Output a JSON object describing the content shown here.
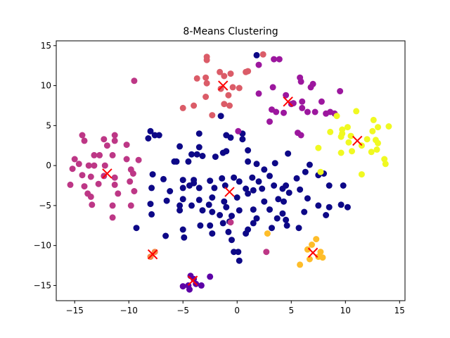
{
  "chart_data": {
    "type": "scatter",
    "title": "8-Means Clustering",
    "xlabel": "",
    "ylabel": "",
    "xlim": [
      -16.7,
      15.5
    ],
    "ylim": [
      -16.9,
      15.6
    ],
    "xticks": [
      -15,
      -10,
      -5,
      0,
      5,
      10,
      15
    ],
    "yticks": [
      -15,
      -10,
      -5,
      0,
      5,
      10,
      15
    ],
    "grid": false,
    "legend": "none",
    "centroid_marker": "x",
    "centroid_color": "#ff0000",
    "clusters": [
      {
        "color": "#0d0887",
        "centroid": [
          -0.7,
          -3.3
        ],
        "points": [
          [
            -8.0,
            4.3
          ],
          [
            -7.6,
            3.8
          ],
          [
            -7.2,
            3.8
          ],
          [
            -8.2,
            3.4
          ],
          [
            -3.5,
            4.0
          ],
          [
            -1.0,
            3.8
          ],
          [
            -0.6,
            3.5
          ],
          [
            0.5,
            3.3
          ],
          [
            0.5,
            4.0
          ],
          [
            -5.3,
            2.4
          ],
          [
            -3.5,
            2.3
          ],
          [
            -4.5,
            0.5
          ],
          [
            -5.8,
            0.5
          ],
          [
            -5.6,
            0.5
          ],
          [
            -4.2,
            1.4
          ],
          [
            -3.7,
            1.4
          ],
          [
            -3.2,
            1.2
          ],
          [
            -2.0,
            1.1
          ],
          [
            -1.3,
            1.6
          ],
          [
            -1.0,
            1.8
          ],
          [
            1.0,
            1.9
          ],
          [
            1.0,
            0.5
          ],
          [
            1.8,
            0.2
          ],
          [
            2.5,
            -0.5
          ],
          [
            3.5,
            0.3
          ],
          [
            4.7,
            1.5
          ],
          [
            3.0,
            -1.3
          ],
          [
            -7.8,
            -1.1
          ],
          [
            -6.8,
            -1.7
          ],
          [
            -5.0,
            -1.8
          ],
          [
            -4.0,
            -1.8
          ],
          [
            -4.0,
            -2.2
          ],
          [
            -2.5,
            -1.9
          ],
          [
            -1.4,
            -1.6
          ],
          [
            -0.3,
            -1.5
          ],
          [
            0.2,
            -2.0
          ],
          [
            1.4,
            -1.5
          ],
          [
            2.0,
            -2.0
          ],
          [
            3.4,
            -2.5
          ],
          [
            4.5,
            -2.5
          ],
          [
            5.5,
            -1.6
          ],
          [
            6.3,
            -0.8
          ],
          [
            6.7,
            0.1
          ],
          [
            7.5,
            -1.2
          ],
          [
            8.0,
            -1.0
          ],
          [
            -7.9,
            -2.8
          ],
          [
            -6.2,
            -3.2
          ],
          [
            -5.0,
            -2.8
          ],
          [
            -4.4,
            -2.5
          ],
          [
            -3.5,
            -2.8
          ],
          [
            -2.1,
            -2.8
          ],
          [
            -1.1,
            -2.5
          ],
          [
            0.8,
            -2.9
          ],
          [
            1.5,
            -3.1
          ],
          [
            2.3,
            -2.9
          ],
          [
            4.2,
            -2.9
          ],
          [
            5.8,
            -3.0
          ],
          [
            8.5,
            -2.5
          ],
          [
            9.8,
            -2.5
          ],
          [
            -6.5,
            -4.4
          ],
          [
            -5.0,
            -4.2
          ],
          [
            -3.5,
            -4.3
          ],
          [
            -2.3,
            -4.0
          ],
          [
            -1.2,
            -4.5
          ],
          [
            0.0,
            -4.0
          ],
          [
            1.0,
            -3.5
          ],
          [
            2.5,
            -4.5
          ],
          [
            3.8,
            -4.2
          ],
          [
            4.3,
            -4.5
          ],
          [
            4.8,
            -3.4
          ],
          [
            6.5,
            -4.1
          ],
          [
            -8.0,
            -4.8
          ],
          [
            -5.3,
            -5.0
          ],
          [
            -4.2,
            -5.0
          ],
          [
            -2.6,
            -4.9
          ],
          [
            -2.3,
            -5.8
          ],
          [
            -1.0,
            -5.2
          ],
          [
            0.2,
            -5.6
          ],
          [
            1.5,
            -5.5
          ],
          [
            3.0,
            -5.5
          ],
          [
            4.2,
            -6.0
          ],
          [
            7.5,
            -5.0
          ],
          [
            8.5,
            -5.2
          ],
          [
            9.6,
            -4.9
          ],
          [
            10.2,
            -5.2
          ],
          [
            -7.9,
            -6.1
          ],
          [
            -5.3,
            -5.6
          ],
          [
            -3.2,
            -5.6
          ],
          [
            -1.6,
            -6.2
          ],
          [
            -0.5,
            -6.3
          ],
          [
            1.8,
            -6.6
          ],
          [
            3.7,
            -6.6
          ],
          [
            4.5,
            -6.8
          ],
          [
            6.2,
            -5.8
          ],
          [
            8.2,
            -6.2
          ],
          [
            -3.4,
            -7.5
          ],
          [
            -2.5,
            -7.5
          ],
          [
            -1.3,
            -7.2
          ],
          [
            -0.7,
            -7.0
          ],
          [
            1.0,
            -8.0
          ],
          [
            1.5,
            -7.2
          ],
          [
            3.2,
            -7.8
          ],
          [
            4.6,
            -7.5
          ],
          [
            5.7,
            -7.8
          ],
          [
            -9.3,
            -7.8
          ],
          [
            -5.0,
            -8.0
          ],
          [
            -6.6,
            -8.8
          ],
          [
            -4.9,
            -9.0
          ],
          [
            -2.3,
            -8.5
          ],
          [
            -0.8,
            -8.3
          ],
          [
            0.8,
            -8.5
          ],
          [
            -0.5,
            -9.3
          ],
          [
            -0.3,
            -10.8
          ],
          [
            0.1,
            -10.8
          ],
          [
            0.2,
            -11.9
          ],
          [
            1.8,
            13.8
          ],
          [
            -1.5,
            6.2
          ]
        ]
      },
      {
        "color": "#5c01a6",
        "centroid": [
          -4.1,
          -14.4
        ],
        "points": [
          [
            -4.3,
            -13.8
          ],
          [
            -4.0,
            -14.2
          ],
          [
            -3.8,
            -14.8
          ],
          [
            -3.3,
            -15.0
          ],
          [
            -4.5,
            -15.0
          ],
          [
            -5.0,
            -15.1
          ],
          [
            -2.5,
            -13.9
          ],
          [
            -4.4,
            -15.5
          ]
        ]
      },
      {
        "color": "#9c179e",
        "centroid": [
          4.7,
          8.0
        ],
        "points": [
          [
            2.0,
            12.6
          ],
          [
            3.4,
            13.3
          ],
          [
            3.9,
            13.3
          ],
          [
            5.8,
            11.0
          ],
          [
            5.9,
            10.5
          ],
          [
            6.8,
            9.8
          ],
          [
            3.3,
            9.8
          ],
          [
            7.0,
            10.2
          ],
          [
            2.0,
            9.0
          ],
          [
            4.5,
            8.8
          ],
          [
            5.0,
            7.7
          ],
          [
            6.0,
            8.0
          ],
          [
            3.2,
            7.0
          ],
          [
            3.6,
            6.7
          ],
          [
            4.3,
            6.6
          ],
          [
            5.2,
            7.8
          ],
          [
            6.0,
            7.2
          ],
          [
            6.5,
            6.7
          ],
          [
            7.2,
            6.7
          ],
          [
            8.2,
            6.5
          ],
          [
            8.6,
            6.7
          ],
          [
            9.0,
            6.5
          ],
          [
            9.5,
            9.3
          ],
          [
            7.8,
            8.0
          ],
          [
            3.0,
            5.5
          ],
          [
            5.6,
            4.1
          ],
          [
            5.9,
            3.8
          ],
          [
            0.1,
            4.3
          ]
        ]
      },
      {
        "color": "#bd3786",
        "centroid": [
          -12.0,
          -1.0
        ],
        "points": [
          [
            -14.3,
            3.8
          ],
          [
            -14.1,
            3.1
          ],
          [
            -12.3,
            3.3
          ],
          [
            -11.3,
            3.8
          ],
          [
            -11.3,
            3.1
          ],
          [
            -10.2,
            2.6
          ],
          [
            -12.0,
            2.5
          ],
          [
            -13.2,
            1.3
          ],
          [
            -12.7,
            1.3
          ],
          [
            -11.5,
            1.3
          ],
          [
            -15.0,
            0.8
          ],
          [
            -14.6,
            0.2
          ],
          [
            -13.7,
            0.0
          ],
          [
            -13.2,
            0.0
          ],
          [
            -12.2,
            0.0
          ],
          [
            -10.2,
            0.8
          ],
          [
            -9.1,
            0.7
          ],
          [
            -15.2,
            -0.4
          ],
          [
            -14.3,
            -1.2
          ],
          [
            -13.5,
            -1.4
          ],
          [
            -12.3,
            -1.3
          ],
          [
            -11.3,
            -1.5
          ],
          [
            -9.8,
            -0.5
          ],
          [
            -9.6,
            -1.0
          ],
          [
            -15.4,
            -2.4
          ],
          [
            -14.1,
            -2.6
          ],
          [
            -12.8,
            -2.3
          ],
          [
            -11.3,
            -2.4
          ],
          [
            -9.9,
            -2.0
          ],
          [
            -13.8,
            -3.5
          ],
          [
            -13.5,
            -3.9
          ],
          [
            -11.0,
            -3.5
          ],
          [
            -9.5,
            -3.2
          ],
          [
            -13.4,
            -4.9
          ],
          [
            -11.5,
            -5.0
          ],
          [
            -9.8,
            -5.0
          ],
          [
            -11.5,
            -6.5
          ],
          [
            -9.5,
            10.6
          ],
          [
            -0.6,
            -7.1
          ],
          [
            2.7,
            -10.8
          ]
        ]
      },
      {
        "color": "#db5c68",
        "centroid": [
          -1.3,
          10.0
        ],
        "points": [
          [
            -2.8,
            13.6
          ],
          [
            -2.8,
            13.2
          ],
          [
            2.4,
            13.9
          ],
          [
            -1.6,
            11.7
          ],
          [
            -1.2,
            11.2
          ],
          [
            -3.7,
            10.9
          ],
          [
            -2.9,
            11.0
          ],
          [
            -0.6,
            11.5
          ],
          [
            0.8,
            11.7
          ],
          [
            1.0,
            11.8
          ],
          [
            -2.8,
            10.3
          ],
          [
            -1.5,
            9.6
          ],
          [
            -0.4,
            9.8
          ],
          [
            0.2,
            9.7
          ],
          [
            -2.9,
            8.6
          ],
          [
            -0.8,
            8.8
          ],
          [
            -4.0,
            7.5
          ],
          [
            -1.2,
            7.7
          ],
          [
            -0.7,
            7.5
          ],
          [
            -5.0,
            7.2
          ],
          [
            -2.3,
            6.3
          ]
        ]
      },
      {
        "color": "#f48849",
        "centroid": [
          -7.8,
          -11.1
        ],
        "points": [
          [
            -8.0,
            -11.4
          ],
          [
            -7.6,
            -10.8
          ]
        ]
      },
      {
        "color": "#febd2a",
        "centroid": [
          7.0,
          -10.9
        ],
        "points": [
          [
            2.8,
            -8.5
          ],
          [
            6.9,
            -9.9
          ],
          [
            7.3,
            -9.2
          ],
          [
            6.5,
            -10.5
          ],
          [
            7.7,
            -10.8
          ],
          [
            6.7,
            -11.7
          ],
          [
            7.5,
            -11.4
          ],
          [
            7.9,
            -11.5
          ],
          [
            5.8,
            -12.4
          ]
        ]
      },
      {
        "color": "#f0f921",
        "centroid": [
          11.1,
          3.1
        ],
        "points": [
          [
            9.2,
            6.2
          ],
          [
            9.7,
            4.5
          ],
          [
            10.2,
            4.8
          ],
          [
            11.0,
            6.8
          ],
          [
            12.6,
            5.7
          ],
          [
            12.5,
            4.3
          ],
          [
            13.0,
            4.8
          ],
          [
            14.0,
            4.9
          ],
          [
            8.6,
            4.2
          ],
          [
            9.7,
            4.0
          ],
          [
            10.5,
            3.7
          ],
          [
            10.3,
            2.9
          ],
          [
            9.6,
            3.6
          ],
          [
            12.0,
            3.3
          ],
          [
            12.8,
            3.2
          ],
          [
            13.0,
            2.8
          ],
          [
            9.6,
            1.6
          ],
          [
            10.6,
            1.8
          ],
          [
            11.5,
            2.5
          ],
          [
            12.4,
            1.7
          ],
          [
            12.9,
            2.0
          ],
          [
            13.6,
            0.8
          ],
          [
            13.7,
            0.2
          ],
          [
            7.5,
            2.2
          ],
          [
            11.5,
            -1.1
          ],
          [
            7.7,
            -0.8
          ]
        ]
      }
    ]
  }
}
